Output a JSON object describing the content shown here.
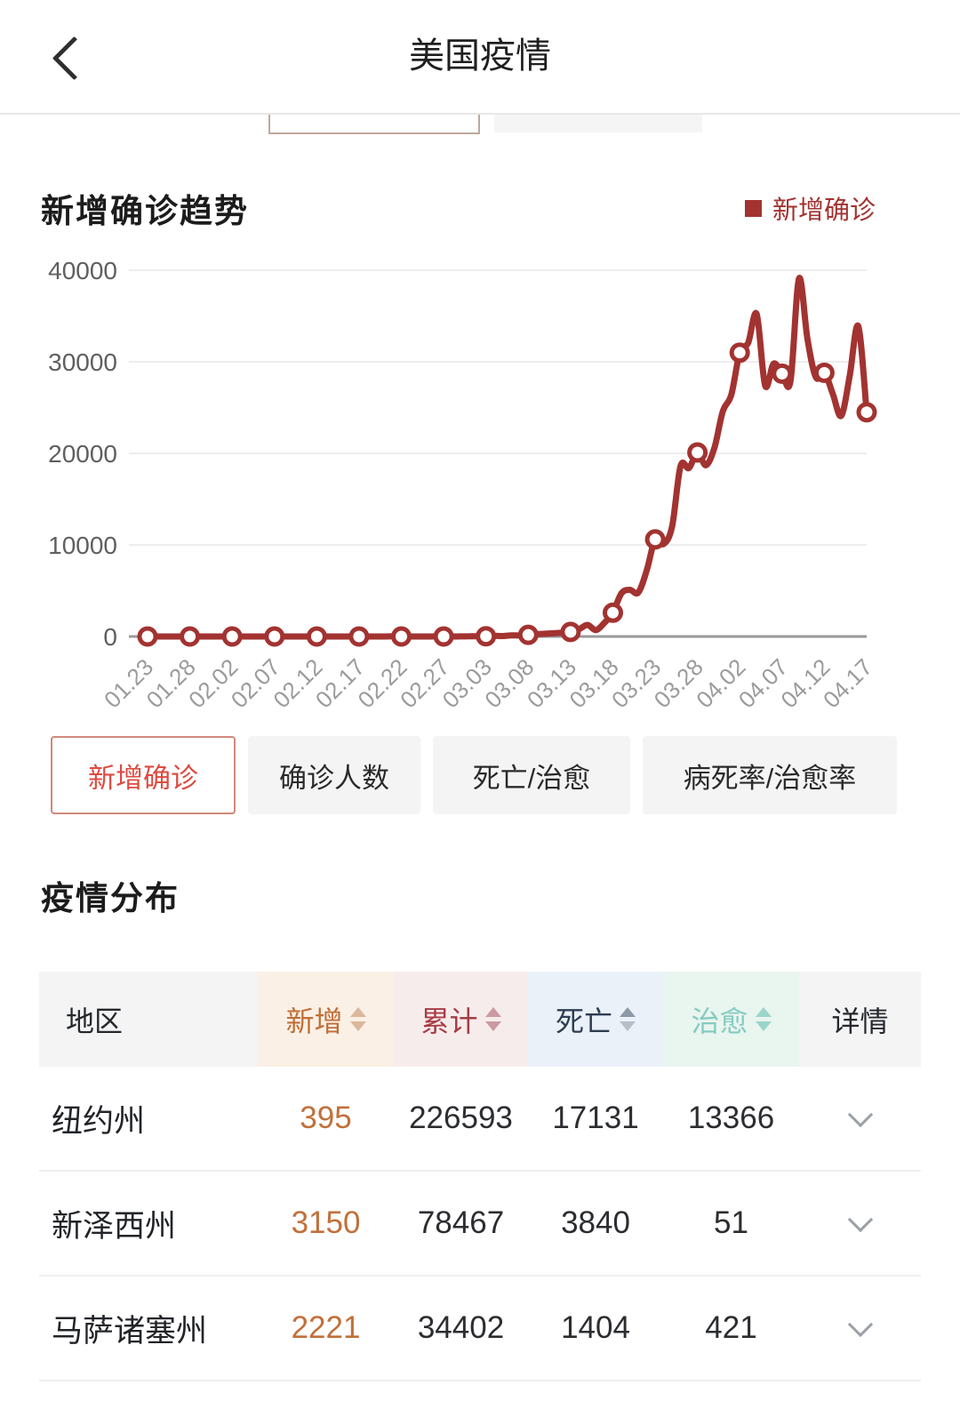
{
  "header": {
    "title": "美国疫情"
  },
  "chart_section": {
    "title": "新增确诊趋势",
    "legend": "新增确诊",
    "legend_color": "#a23331"
  },
  "chart_data": {
    "type": "line",
    "title": "新增确诊趋势",
    "x": [
      "01.23",
      "01.24",
      "01.25",
      "01.26",
      "01.27",
      "01.28",
      "01.29",
      "01.30",
      "01.31",
      "02.01",
      "02.02",
      "02.03",
      "02.04",
      "02.05",
      "02.06",
      "02.07",
      "02.08",
      "02.09",
      "02.10",
      "02.11",
      "02.12",
      "02.13",
      "02.14",
      "02.15",
      "02.16",
      "02.17",
      "02.18",
      "02.19",
      "02.20",
      "02.21",
      "02.22",
      "02.23",
      "02.24",
      "02.25",
      "02.26",
      "02.27",
      "02.28",
      "02.29",
      "03.01",
      "03.02",
      "03.03",
      "03.04",
      "03.05",
      "03.06",
      "03.07",
      "03.08",
      "03.09",
      "03.10",
      "03.11",
      "03.12",
      "03.13",
      "03.14",
      "03.15",
      "03.16",
      "03.17",
      "03.18",
      "03.19",
      "03.20",
      "03.21",
      "03.22",
      "03.23",
      "03.24",
      "03.25",
      "03.26",
      "03.27",
      "03.28",
      "03.29",
      "03.30",
      "03.31",
      "04.01",
      "04.02",
      "04.03",
      "04.04",
      "04.05",
      "04.06",
      "04.07",
      "04.08",
      "04.09",
      "04.10",
      "04.11",
      "04.12",
      "04.13",
      "04.14",
      "04.15",
      "04.16",
      "04.17"
    ],
    "x_tick_labels": [
      "01.23",
      "01.28",
      "02.02",
      "02.07",
      "02.12",
      "02.17",
      "02.22",
      "02.27",
      "03.03",
      "03.08",
      "03.13",
      "03.18",
      "03.23",
      "03.28",
      "04.02",
      "04.07",
      "04.12",
      "04.17"
    ],
    "series": [
      {
        "name": "新增确诊",
        "color": "#a23331",
        "values": [
          1,
          1,
          1,
          3,
          0,
          0,
          0,
          1,
          1,
          1,
          0,
          3,
          0,
          1,
          1,
          0,
          0,
          0,
          1,
          1,
          0,
          1,
          1,
          0,
          0,
          1,
          0,
          0,
          1,
          19,
          0,
          0,
          1,
          1,
          6,
          1,
          4,
          7,
          23,
          20,
          31,
          68,
          45,
          119,
          114,
          185,
          250,
          300,
          350,
          420,
          500,
          800,
          1260,
          700,
          1500,
          2600,
          4700,
          5100,
          4800,
          7200,
          10600,
          10100,
          12000,
          18600,
          18400,
          20100,
          18700,
          20600,
          24600,
          26400,
          31000,
          32100,
          35200,
          27400,
          29800,
          28700,
          27900,
          39100,
          32500,
          28300,
          28800,
          26500,
          24100,
          28500,
          33900,
          24500
        ]
      }
    ],
    "ylim": [
      0,
      40000
    ],
    "yticks": [
      0,
      10000,
      20000,
      30000,
      40000
    ],
    "marker_every": 5,
    "grid": true,
    "legend_position": "top-right",
    "xlabel": "",
    "ylabel": ""
  },
  "tabs": [
    {
      "label": "新增确诊",
      "selected": true
    },
    {
      "label": "确诊人数",
      "selected": false
    },
    {
      "label": "死亡/治愈",
      "selected": false
    },
    {
      "label": "病死率/治愈率",
      "selected": false
    }
  ],
  "distribution": {
    "title": "疫情分布",
    "columns": [
      {
        "label": "地区",
        "sortable": false
      },
      {
        "label": "新增",
        "sortable": true,
        "accent": "#bf6e38",
        "tint": "#fbf0e5"
      },
      {
        "label": "累计",
        "sortable": true,
        "accent": "#a63d44",
        "tint": "#f7ecec"
      },
      {
        "label": "死亡",
        "sortable": true,
        "accent": "#2e3d52",
        "tint": "#eaf1f8"
      },
      {
        "label": "治愈",
        "sortable": true,
        "accent": "#85ccc1",
        "tint": "#e9f5ef"
      },
      {
        "label": "详情",
        "sortable": false
      }
    ],
    "rows": [
      {
        "region": "纽约州",
        "new": "395",
        "cumulative": "226593",
        "deaths": "17131",
        "cured": "13366"
      },
      {
        "region": "新泽西州",
        "new": "3150",
        "cumulative": "78467",
        "deaths": "3840",
        "cured": "51"
      },
      {
        "region": "马萨诸塞州",
        "new": "2221",
        "cumulative": "34402",
        "deaths": "1404",
        "cured": "421"
      }
    ]
  },
  "colors": {
    "line_red": "#a23331",
    "selected_tab_red": "#dd4b41",
    "new_value_orange": "#c1703a",
    "axis_gray": "#9a9a9a"
  }
}
